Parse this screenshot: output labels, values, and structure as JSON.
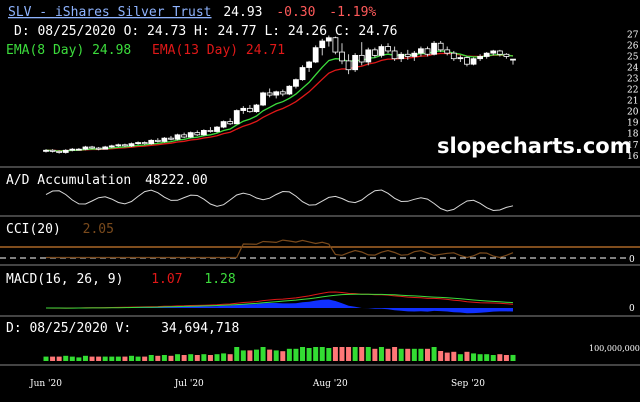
{
  "chart_data": {
    "type": "candlestick",
    "symbol": "SLV",
    "name": "iShares Silver Trust",
    "last": "24.93",
    "change": "-0.30",
    "change_pct": "-1.19%",
    "ohlc_label": "D: 08/25/2020 O: 24.73 H: 24.77 L: 24.26 C: 24.76",
    "ema8_label": "EMA(8 Day) 24.98",
    "ema13_label": "EMA(13 Day) 24.71",
    "watermark": "slopecharts.com",
    "price_axis": {
      "ylim": [
        15.8,
        27.4
      ],
      "ticks": [
        "27",
        "26",
        "25",
        "24",
        "23",
        "22",
        "21",
        "20",
        "19",
        "18",
        "17",
        "16"
      ]
    },
    "x_ticks": [
      "Jun '20",
      "Jul '20",
      "Aug '20",
      "Sep '20"
    ],
    "candles": [
      [
        16.4,
        16.6,
        16.3,
        16.5
      ],
      [
        16.5,
        16.6,
        16.3,
        16.4
      ],
      [
        16.4,
        16.5,
        16.2,
        16.3
      ],
      [
        16.3,
        16.6,
        16.2,
        16.5
      ],
      [
        16.5,
        16.7,
        16.4,
        16.6
      ],
      [
        16.6,
        16.7,
        16.5,
        16.6
      ],
      [
        16.6,
        16.9,
        16.5,
        16.8
      ],
      [
        16.8,
        16.9,
        16.6,
        16.7
      ],
      [
        16.7,
        16.8,
        16.5,
        16.6
      ],
      [
        16.6,
        16.9,
        16.6,
        16.8
      ],
      [
        16.8,
        17.0,
        16.7,
        16.9
      ],
      [
        16.9,
        17.1,
        16.8,
        17.0
      ],
      [
        17.0,
        17.1,
        16.8,
        16.9
      ],
      [
        16.9,
        17.2,
        16.8,
        17.1
      ],
      [
        17.1,
        17.3,
        17.0,
        17.2
      ],
      [
        17.2,
        17.3,
        17.0,
        17.1
      ],
      [
        17.1,
        17.5,
        17.0,
        17.4
      ],
      [
        17.4,
        17.6,
        17.2,
        17.3
      ],
      [
        17.3,
        17.7,
        17.2,
        17.6
      ],
      [
        17.6,
        17.8,
        17.4,
        17.5
      ],
      [
        17.5,
        18.0,
        17.4,
        17.9
      ],
      [
        17.9,
        18.1,
        17.6,
        17.7
      ],
      [
        17.7,
        18.2,
        17.6,
        18.1
      ],
      [
        18.1,
        18.3,
        17.8,
        17.9
      ],
      [
        17.9,
        18.4,
        17.8,
        18.3
      ],
      [
        18.3,
        18.6,
        18.1,
        18.2
      ],
      [
        18.2,
        18.7,
        18.1,
        18.6
      ],
      [
        18.6,
        19.2,
        18.5,
        19.1
      ],
      [
        19.1,
        19.4,
        18.8,
        18.9
      ],
      [
        18.9,
        20.2,
        18.9,
        20.1
      ],
      [
        20.1,
        20.5,
        19.8,
        20.3
      ],
      [
        20.3,
        20.6,
        19.9,
        20.0
      ],
      [
        20.0,
        20.7,
        19.9,
        20.6
      ],
      [
        20.6,
        21.8,
        20.5,
        21.7
      ],
      [
        21.7,
        22.1,
        21.3,
        21.5
      ],
      [
        21.5,
        21.9,
        21.2,
        21.8
      ],
      [
        21.8,
        22.0,
        21.4,
        21.6
      ],
      [
        21.6,
        22.4,
        21.5,
        22.3
      ],
      [
        22.3,
        23.0,
        22.1,
        22.9
      ],
      [
        22.9,
        24.2,
        22.8,
        24.0
      ],
      [
        24.0,
        24.6,
        23.6,
        24.5
      ],
      [
        24.5,
        26.0,
        24.4,
        25.8
      ],
      [
        25.8,
        26.6,
        25.1,
        26.4
      ],
      [
        26.4,
        26.9,
        25.9,
        26.7
      ],
      [
        26.7,
        26.8,
        25.2,
        25.4
      ],
      [
        25.4,
        26.2,
        24.3,
        24.6
      ],
      [
        24.6,
        25.2,
        23.4,
        23.8
      ],
      [
        23.8,
        25.3,
        23.6,
        25.1
      ],
      [
        25.1,
        26.3,
        24.2,
        24.5
      ],
      [
        24.5,
        25.8,
        24.2,
        25.6
      ],
      [
        25.6,
        25.8,
        24.9,
        25.1
      ],
      [
        25.1,
        26.1,
        24.9,
        25.9
      ],
      [
        25.9,
        26.2,
        25.3,
        25.5
      ],
      [
        25.5,
        25.9,
        24.6,
        24.8
      ],
      [
        24.8,
        25.4,
        24.5,
        25.2
      ],
      [
        25.2,
        25.6,
        24.7,
        25.0
      ],
      [
        25.0,
        25.5,
        24.6,
        25.3
      ],
      [
        25.3,
        25.9,
        25.0,
        25.7
      ],
      [
        25.7,
        25.9,
        25.0,
        25.2
      ],
      [
        25.2,
        26.4,
        25.1,
        26.2
      ],
      [
        26.2,
        26.4,
        25.4,
        25.6
      ],
      [
        25.6,
        25.9,
        25.1,
        25.3
      ],
      [
        25.3,
        25.5,
        24.6,
        24.8
      ],
      [
        24.8,
        25.1,
        24.5,
        24.9
      ],
      [
        24.9,
        25.0,
        24.1,
        24.3
      ],
      [
        24.3,
        24.9,
        24.2,
        24.8
      ],
      [
        24.8,
        25.2,
        24.6,
        25.0
      ],
      [
        25.0,
        25.4,
        24.8,
        25.3
      ],
      [
        25.3,
        25.6,
        25.1,
        25.5
      ],
      [
        25.5,
        25.6,
        25.0,
        25.2
      ],
      [
        25.2,
        25.3,
        24.8,
        25.0
      ],
      [
        24.73,
        24.77,
        24.26,
        24.76
      ]
    ],
    "ad": {
      "label": "A/D Accumulation",
      "value": "48222.00"
    },
    "cci": {
      "label": "CCI(20)",
      "value": "2.05",
      "zero_label": "0"
    },
    "macd": {
      "label": "MACD(16, 26, 9)",
      "value1": "1.07",
      "value2": "1.28",
      "zero_label": "0"
    },
    "volume": {
      "label": "D: 08/25/2020 V:",
      "value": "34,694,718",
      "scale_label": "100,000,000"
    }
  },
  "colors": {
    "background": "#000000",
    "grid": "#3a3a3a",
    "text": "#ffffff",
    "down": "#ff5a5a",
    "up": "#2ecc40",
    "ema8": "#3cdc3c",
    "ema13": "#e01818",
    "link": "#8fb4ff",
    "cci_line": "#7a4a1c",
    "cci_ref": "#ff9a3a",
    "macd_fill": "#1030ff",
    "vol_green": "#33dd33",
    "vol_red": "#ff7777"
  }
}
